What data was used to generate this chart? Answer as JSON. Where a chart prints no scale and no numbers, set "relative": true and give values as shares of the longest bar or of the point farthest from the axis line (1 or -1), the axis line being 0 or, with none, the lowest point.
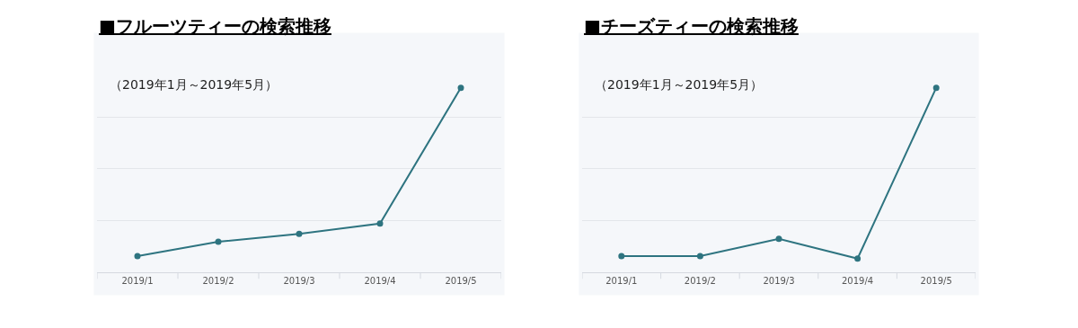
{
  "chart_data": [
    {
      "type": "line",
      "title": "■フルーツティーの検索推移",
      "annotations": [
        "（2019年1月～2019年5月）"
      ],
      "categories": [
        "2019/1",
        "2019/2",
        "2019/3",
        "2019/4",
        "2019/5"
      ],
      "relative": true,
      "series": [
        {
          "color": "#2e7480",
          "values": [
            0.087,
            0.165,
            0.208,
            0.264,
            1
          ]
        }
      ],
      "marker": "circle",
      "line_style": "solid",
      "grid": "y"
    },
    {
      "type": "line",
      "title": "■チーズティーの検索推移",
      "annotations": [
        "（2019年1月～2019年5月）"
      ],
      "categories": [
        "2019/1",
        "2019/2",
        "2019/3",
        "2019/4",
        "2019/5"
      ],
      "relative": true,
      "series": [
        {
          "color": "#2e7480",
          "values": [
            0.087,
            0.087,
            0.181,
            0.074,
            1
          ]
        }
      ],
      "marker": "circle",
      "line_style": "solid",
      "grid": "y"
    }
  ]
}
